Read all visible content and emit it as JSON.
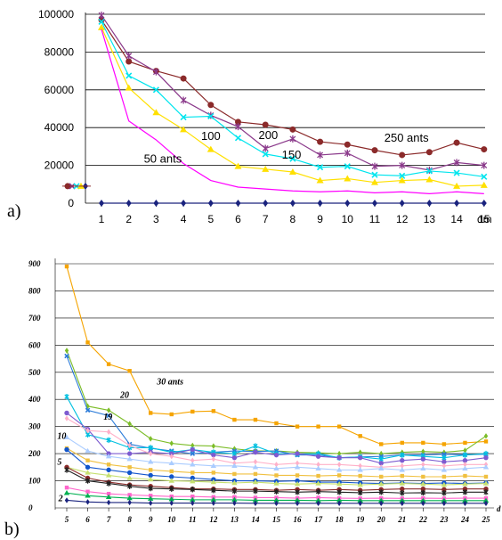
{
  "chart_data": [
    {
      "id": "a",
      "type": "line",
      "panel_label": "a)",
      "xlabel": "dm",
      "ylabel": "",
      "x": [
        1,
        2,
        3,
        4,
        5,
        6,
        7,
        8,
        9,
        10,
        11,
        12,
        13,
        14,
        15
      ],
      "ylim": [
        0,
        100000
      ],
      "yticks": [
        "0",
        "20000",
        "40000",
        "60000",
        "80000",
        "100000"
      ],
      "grid": true,
      "series": [
        {
          "color": "#8b2a2a",
          "marker": "circle",
          "values": [
            97000,
            75000,
            70000,
            66000,
            52000,
            43000,
            41500,
            39000,
            32500,
            31000,
            28000,
            25500,
            27000,
            32000,
            28500
          ]
        },
        {
          "color": "#8b3a8b",
          "marker": "star",
          "values": [
            99500,
            78000,
            69500,
            54500,
            46500,
            40500,
            29000,
            34000,
            25500,
            26500,
            19500,
            20000,
            17500,
            21500,
            20000
          ]
        },
        {
          "color": "#00e5ee",
          "marker": "x",
          "values": [
            96000,
            67500,
            60000,
            45500,
            46000,
            34500,
            26000,
            23500,
            19000,
            19500,
            15000,
            14500,
            17000,
            16000,
            14000
          ]
        },
        {
          "color": "#ffe000",
          "marker": "triangle",
          "values": [
            93000,
            61000,
            48000,
            39000,
            28500,
            19500,
            18000,
            16500,
            12000,
            13000,
            11000,
            12000,
            12500,
            9000,
            9500
          ]
        },
        {
          "color": "#ff00ff",
          "marker": "none",
          "values": [
            92000,
            43500,
            33500,
            21000,
            12000,
            8500,
            7500,
            6500,
            6000,
            6500,
            5500,
            6000,
            5000,
            6000,
            5000
          ]
        },
        {
          "color": "#1a237e",
          "marker": "diamond",
          "values": [
            0,
            0,
            0,
            0,
            0,
            0,
            0,
            0,
            0,
            0,
            0,
            0,
            0,
            0,
            0
          ]
        }
      ],
      "left_markers": [
        {
          "color": "#8b2a2a",
          "value": 9000
        },
        {
          "color": "#8b3a8b",
          "value": 9000
        },
        {
          "color": "#00e5ee",
          "value": 9000
        },
        {
          "color": "#ffe000",
          "value": 9000
        },
        {
          "color": "#1a237e",
          "value": 9000
        }
      ],
      "annotations": [
        {
          "text": "50 ants",
          "x": 2.55,
          "y": 21500
        },
        {
          "text": "100",
          "x": 4.65,
          "y": 33500
        },
        {
          "text": "200",
          "x": 6.75,
          "y": 34000
        },
        {
          "text": "150",
          "x": 7.6,
          "y": 23500
        },
        {
          "text": "250 ants",
          "x": 11.35,
          "y": 32500
        }
      ]
    },
    {
      "id": "b",
      "type": "line",
      "panel_label": "b)",
      "xlabel": "d",
      "ylabel": "",
      "x": [
        5,
        6,
        7,
        8,
        9,
        10,
        11,
        12,
        13,
        14,
        15,
        16,
        17,
        18,
        19,
        20,
        21,
        22,
        23,
        24,
        25
      ],
      "ylim": [
        0,
        900
      ],
      "yticks": [
        "0",
        "100",
        "200",
        "300",
        "400",
        "500",
        "600",
        "700",
        "800",
        "900"
      ],
      "grid": true,
      "series": [
        {
          "color": "#f5a400",
          "marker": "square",
          "values": [
            890,
            610,
            530,
            505,
            350,
            345,
            355,
            357,
            325,
            325,
            312,
            300,
            300,
            300,
            265,
            235,
            240,
            240,
            235,
            240,
            245
          ]
        },
        {
          "color": "#7cbd28",
          "marker": "diamond",
          "values": [
            580,
            375,
            360,
            310,
            255,
            238,
            230,
            228,
            218,
            210,
            210,
            205,
            203,
            200,
            205,
            200,
            205,
            208,
            205,
            212,
            265
          ]
        },
        {
          "color": "#2b7bd9",
          "marker": "x",
          "values": [
            560,
            360,
            340,
            235,
            220,
            210,
            200,
            205,
            210,
            208,
            210,
            195,
            195,
            185,
            188,
            190,
            195,
            195,
            198,
            196,
            198
          ]
        },
        {
          "color": "#00c0e0",
          "marker": "star",
          "values": [
            410,
            270,
            250,
            222,
            222,
            205,
            215,
            205,
            200,
            228,
            200,
            198,
            200,
            185,
            188,
            180,
            195,
            190,
            185,
            195,
            200
          ]
        },
        {
          "color": "#7d5bd0",
          "marker": "circle",
          "values": [
            350,
            290,
            200,
            200,
            205,
            200,
            215,
            195,
            185,
            205,
            195,
            200,
            190,
            185,
            185,
            165,
            175,
            180,
            170,
            175,
            185
          ]
        },
        {
          "color": "#ffb0c8",
          "marker": "diamond",
          "values": [
            330,
            285,
            280,
            230,
            200,
            190,
            175,
            180,
            165,
            170,
            160,
            165,
            160,
            160,
            155,
            150,
            155,
            160,
            155,
            160,
            160
          ]
        },
        {
          "color": "#aaccff",
          "marker": "triangle",
          "values": [
            260,
            210,
            190,
            180,
            170,
            165,
            160,
            155,
            155,
            150,
            145,
            150,
            145,
            140,
            140,
            145,
            140,
            145,
            140,
            145,
            150
          ]
        },
        {
          "color": "#f0c040",
          "marker": "square",
          "values": [
            220,
            175,
            160,
            150,
            140,
            135,
            130,
            130,
            125,
            125,
            120,
            120,
            118,
            120,
            118,
            115,
            118,
            115,
            115,
            118,
            115
          ]
        },
        {
          "color": "#1155cc",
          "marker": "circle",
          "values": [
            215,
            150,
            140,
            130,
            120,
            115,
            110,
            105,
            100,
            100,
            98,
            100,
            95,
            95,
            92,
            90,
            92,
            90,
            92,
            90,
            92
          ]
        },
        {
          "color": "#c6e070",
          "marker": "triangle",
          "values": [
            150,
            130,
            120,
            110,
            105,
            100,
            98,
            95,
            92,
            95,
            90,
            88,
            90,
            88,
            85,
            88,
            90,
            88,
            85,
            88,
            90
          ]
        },
        {
          "color": "#8b2a2a",
          "marker": "circle",
          "values": [
            150,
            110,
            95,
            85,
            80,
            75,
            70,
            70,
            68,
            68,
            65,
            68,
            65,
            68,
            65,
            68,
            70,
            70,
            68,
            70,
            70
          ]
        },
        {
          "color": "#202020",
          "marker": "star",
          "values": [
            140,
            100,
            90,
            80,
            72,
            70,
            68,
            65,
            62,
            62,
            60,
            58,
            60,
            58,
            56,
            58,
            55,
            56,
            55,
            58,
            58
          ]
        },
        {
          "color": "#ff66cc",
          "marker": "square",
          "values": [
            75,
            60,
            52,
            48,
            45,
            42,
            42,
            40,
            40,
            38,
            38,
            36,
            38,
            36,
            35,
            36,
            35,
            36,
            35,
            36,
            36
          ]
        },
        {
          "color": "#00b050",
          "marker": "triangle",
          "values": [
            55,
            45,
            40,
            36,
            34,
            32,
            30,
            30,
            30,
            28,
            28,
            28,
            27,
            28,
            27,
            27,
            27,
            27,
            27,
            27,
            27
          ]
        },
        {
          "color": "#1a237e",
          "marker": "diamond",
          "values": [
            28,
            22,
            20,
            20,
            18,
            18,
            18,
            18,
            18,
            17,
            17,
            17,
            17,
            17,
            17,
            17,
            17,
            17,
            17,
            17,
            17
          ]
        }
      ],
      "annotations": [
        {
          "text": "30 ants",
          "x": 9.3,
          "y": 455
        },
        {
          "text": "20",
          "x": 7.55,
          "y": 405
        },
        {
          "text": "19",
          "x": 6.75,
          "y": 325
        },
        {
          "text": "10",
          "x": 4.55,
          "y": 255
        },
        {
          "text": "5",
          "x": 4.55,
          "y": 160
        },
        {
          "text": "2",
          "x": 4.6,
          "y": 25
        }
      ]
    }
  ]
}
